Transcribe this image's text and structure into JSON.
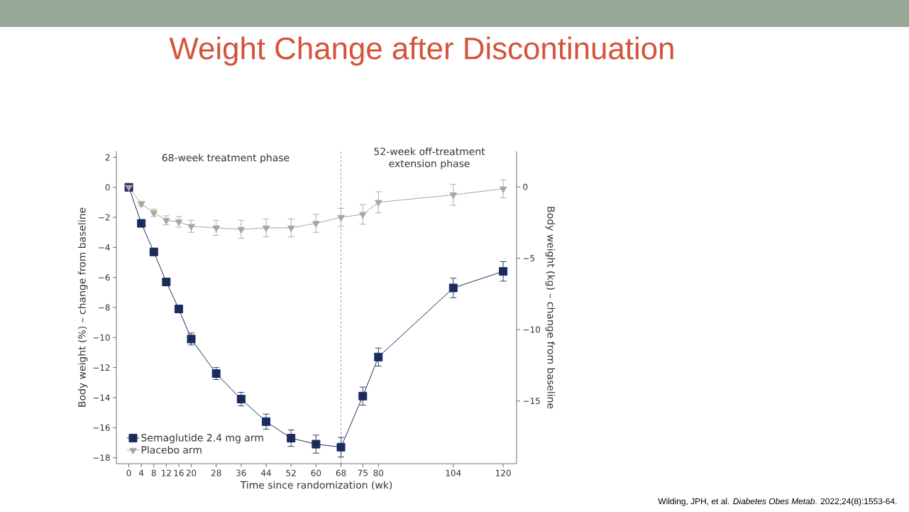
{
  "chart_data": {
    "type": "line",
    "title": "Weight Change after Discontinuation",
    "xlabel": "Time since randomization (wk)",
    "ylabel": "Body weight (%) – change from baseline",
    "y2label": "Body weight (kg) – change from baseline",
    "annotations": [
      "68-week treatment phase",
      "52-week off-treatment extension phase",
      "Wilding, JPH, et al. *Diabetes Obes Metab*. 2022;24(8):1553-64."
    ],
    "x": [
      0,
      4,
      8,
      12,
      16,
      20,
      28,
      36,
      44,
      52,
      60,
      68,
      75,
      80,
      104,
      120
    ],
    "series": [
      {
        "name": "Semaglutide 2.4 mg arm",
        "color": "#1c2b5e",
        "marker": "square",
        "values": [
          0,
          -2.4,
          -4.3,
          -6.3,
          -8.1,
          -10.1,
          -12.4,
          -14.1,
          -15.6,
          -16.7,
          -17.1,
          -17.3,
          -13.9,
          -11.3,
          -6.7,
          -5.6
        ],
        "errors": [
          null,
          0.15,
          0.2,
          0.2,
          0.25,
          0.4,
          0.4,
          0.45,
          0.5,
          0.55,
          0.6,
          0.65,
          0.6,
          0.6,
          0.65,
          0.65
        ]
      },
      {
        "name": "Placebo arm",
        "color": "#aaa69f",
        "marker": "triangle",
        "values": [
          0,
          -1.1,
          -1.7,
          -2.2,
          -2.3,
          -2.6,
          -2.7,
          -2.8,
          -2.7,
          -2.7,
          -2.4,
          -2.0,
          -1.8,
          -1.0,
          -0.5,
          -0.1
        ],
        "errors": [
          null,
          0.15,
          0.25,
          0.3,
          0.35,
          0.4,
          0.5,
          0.6,
          0.6,
          0.6,
          0.6,
          0.6,
          0.65,
          0.7,
          0.7,
          0.6
        ]
      }
    ],
    "xlim": [
      -4,
      124.3
    ],
    "xticks": [
      0,
      4,
      8,
      12,
      16,
      20,
      28,
      36,
      44,
      52,
      60,
      68,
      75,
      80,
      104,
      120
    ],
    "ylim": [
      -18.4,
      2.4
    ],
    "yticks": [
      {
        "value": -18,
        "label": "−18"
      },
      {
        "value": -16,
        "label": "−16"
      },
      {
        "value": -14,
        "label": "−14"
      },
      {
        "value": -12,
        "label": "−12"
      },
      {
        "value": -10,
        "label": "−10"
      },
      {
        "value": -8,
        "label": "−8"
      },
      {
        "value": -6,
        "label": "−6"
      },
      {
        "value": -4,
        "label": "−4"
      },
      {
        "value": -2,
        "label": "−2"
      },
      0,
      2
    ],
    "y2lim": [
      -19.4,
      2.5
    ],
    "y2ticks": [
      {
        "value": -15,
        "label": "−15"
      },
      {
        "value": -10,
        "label": "−10"
      },
      {
        "value": -5,
        "label": "−5"
      },
      0
    ],
    "ref_lines": [
      {
        "axis": "x",
        "value": 68,
        "line_style": "dashed"
      }
    ],
    "legend": "bottom left"
  }
}
